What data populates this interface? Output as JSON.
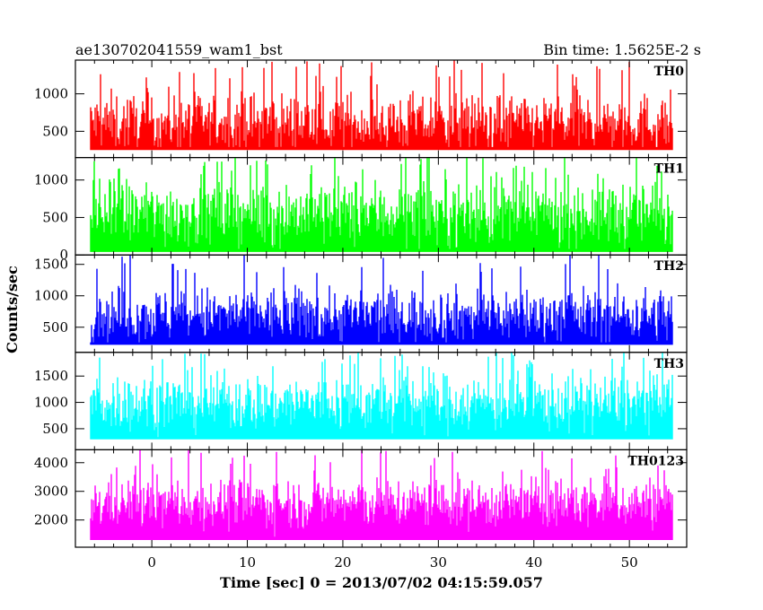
{
  "chart_data": {
    "type": "line",
    "title_left": "ae130702041559_wam1_bst",
    "title_right": "Bin time: 1.5625E-2 s",
    "xlabel": "Time [sec] 0 = 2013/07/02 04:15:59.057",
    "ylabel": "Counts/sec",
    "xlim": [
      -8,
      56
    ],
    "x_ticks": [
      0,
      10,
      20,
      30,
      40,
      50
    ],
    "x_tick_labels": [
      "0",
      "10",
      "20",
      "30",
      "40",
      "50"
    ],
    "panels": [
      {
        "name": "TH0",
        "color": "#ff0000",
        "ylim": [
          150,
          1450
        ],
        "y_ticks": [
          500,
          1000
        ],
        "y_tick_labels": [
          "500",
          "1000"
        ],
        "baseline": 250,
        "mean": 620,
        "spread": 200,
        "peak": 1400
      },
      {
        "name": "TH1",
        "color": "#00ff00",
        "ylim": [
          0,
          1300
        ],
        "y_ticks": [
          0,
          500,
          1000
        ],
        "y_tick_labels": [
          "0",
          "500",
          "1000"
        ],
        "baseline": 40,
        "mean": 560,
        "spread": 230,
        "peak": 1270
      },
      {
        "name": "TH2",
        "color": "#0000ff",
        "ylim": [
          100,
          1650
        ],
        "y_ticks": [
          500,
          1000,
          1500
        ],
        "y_tick_labels": [
          "500",
          "1000",
          "1500"
        ],
        "baseline": 220,
        "mean": 700,
        "spread": 220,
        "peak": 1600
      },
      {
        "name": "TH3",
        "color": "#00ffff",
        "ylim": [
          100,
          1950
        ],
        "y_ticks": [
          500,
          1000,
          1500
        ],
        "y_tick_labels": [
          "500",
          "1000",
          "1500"
        ],
        "baseline": 300,
        "mean": 1000,
        "spread": 280,
        "peak": 1900
      },
      {
        "name": "TH0123",
        "color": "#ff00ff",
        "ylim": [
          1050,
          4450
        ],
        "y_ticks": [
          2000,
          3000,
          4000
        ],
        "y_tick_labels": [
          "2000",
          "3000",
          "4000"
        ],
        "baseline": 1300,
        "mean": 2600,
        "spread": 450,
        "peak": 4300
      }
    ],
    "grid": false,
    "legend": "none"
  }
}
